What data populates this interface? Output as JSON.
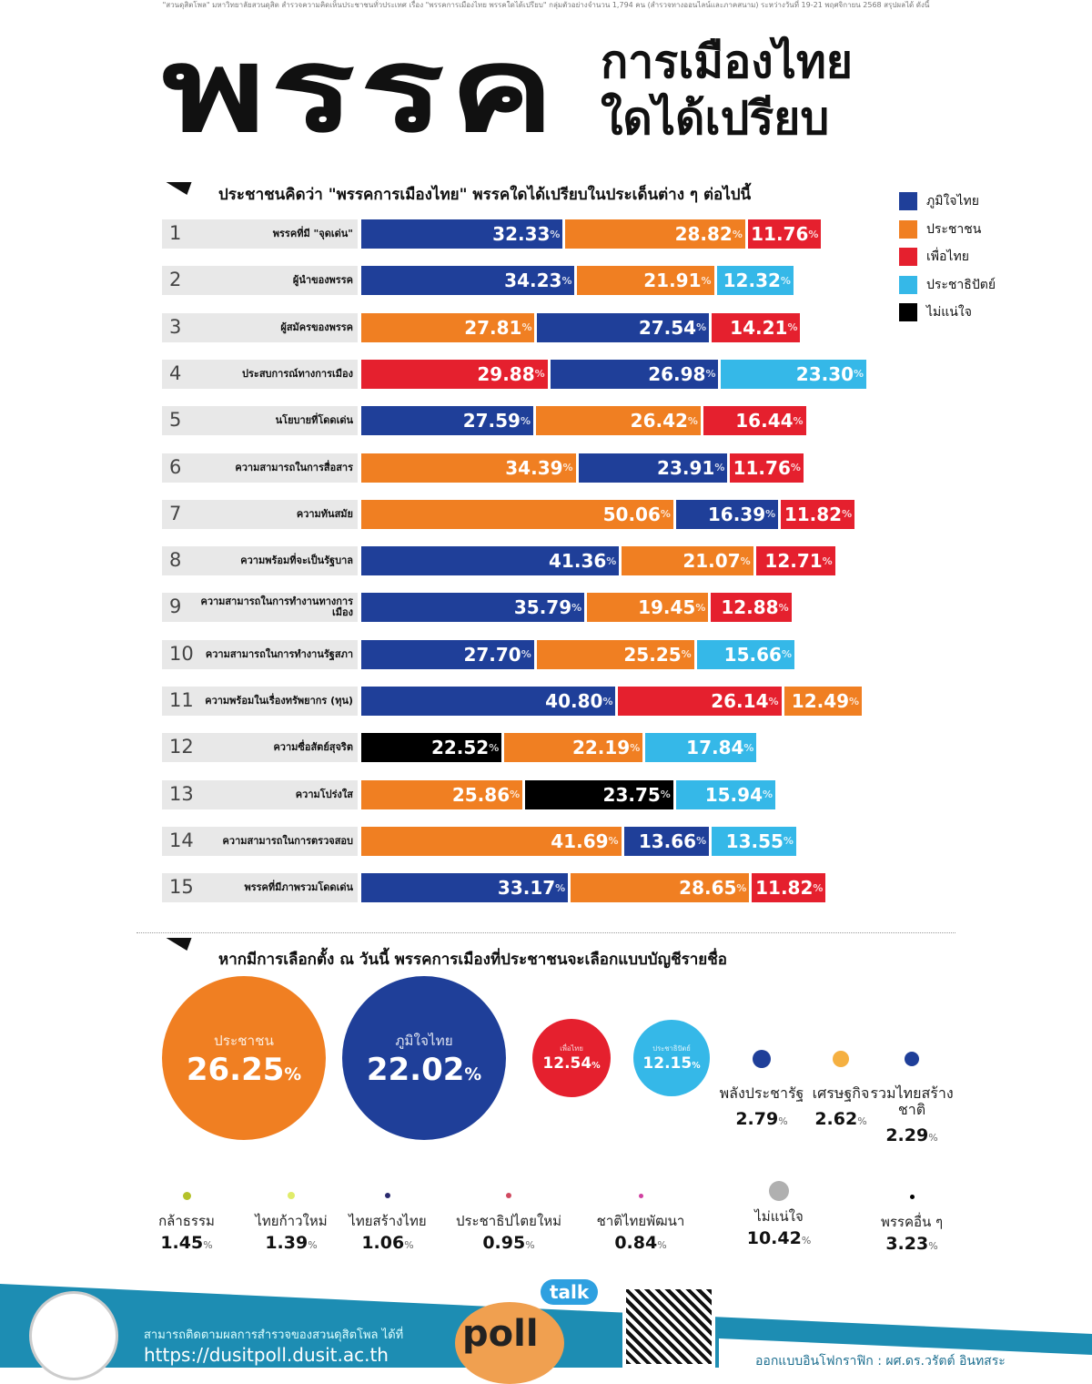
{
  "source_line": "\"สวนดุสิตโพล\" มหาวิทยาลัยสวนดุสิต สำรวจความคิดเห็นประชาชนทั่วประเทศ เรื่อง \"พรรคการเมืองไทย พรรคใดได้เปรียบ\" กลุ่มตัวอย่างจำนวน 1,794 คน (สำรวจทางออนไลน์และภาคสนาม) ระหว่างวันที่ 19-21 พฤศจิกายน 2568 สรุปผลได้ ดังนี้",
  "header": {
    "big": "พรรค",
    "line1": "การเมืองไทย",
    "line2": "ใดได้เปรียบ"
  },
  "colors": {
    "ภูมิใจไทย": "#1f3f99",
    "ประชาชน": "#f07f22",
    "เพื่อไทย": "#e5202e",
    "ประชาธิปัตย์": "#35b8e8",
    "ไม่แน่ใจ": "#000000"
  },
  "chart_data": [
    {
      "type": "bar",
      "orientation": "horizontal-stacked",
      "title": "ประชาชนคิดว่า \"พรรคการเมืองไทย\" พรรคใดได้เปรียบในประเด็นต่าง ๆ ต่อไปนี้",
      "legend_position": "right",
      "legend": [
        "ภูมิใจไทย",
        "ประชาชน",
        "เพื่อไทย",
        "ประชาธิปัตย์",
        "ไม่แน่ใจ"
      ],
      "rows": [
        {
          "n": "1",
          "label": "พรรคที่มี \"จุดเด่น\"",
          "segments": [
            {
              "party": "ภูมิใจไทย",
              "value": "32.33"
            },
            {
              "party": "ประชาชน",
              "value": "28.82"
            },
            {
              "party": "เพื่อไทย",
              "value": "11.76"
            }
          ]
        },
        {
          "n": "2",
          "label": "ผู้นำของพรรค",
          "segments": [
            {
              "party": "ภูมิใจไทย",
              "value": "34.23"
            },
            {
              "party": "ประชาชน",
              "value": "21.91"
            },
            {
              "party": "ประชาธิปัตย์",
              "value": "12.32"
            }
          ]
        },
        {
          "n": "3",
          "label": "ผู้สมัครของพรรค",
          "segments": [
            {
              "party": "ประชาชน",
              "value": "27.81"
            },
            {
              "party": "ภูมิใจไทย",
              "value": "27.54"
            },
            {
              "party": "เพื่อไทย",
              "value": "14.21"
            }
          ]
        },
        {
          "n": "4",
          "label": "ประสบการณ์ทางการเมือง",
          "segments": [
            {
              "party": "เพื่อไทย",
              "value": "29.88"
            },
            {
              "party": "ภูมิใจไทย",
              "value": "26.98"
            },
            {
              "party": "ประชาธิปัตย์",
              "value": "23.30"
            }
          ]
        },
        {
          "n": "5",
          "label": "นโยบายที่โดดเด่น",
          "segments": [
            {
              "party": "ภูมิใจไทย",
              "value": "27.59"
            },
            {
              "party": "ประชาชน",
              "value": "26.42"
            },
            {
              "party": "เพื่อไทย",
              "value": "16.44"
            }
          ]
        },
        {
          "n": "6",
          "label": "ความสามารถในการสื่อสาร",
          "segments": [
            {
              "party": "ประชาชน",
              "value": "34.39"
            },
            {
              "party": "ภูมิใจไทย",
              "value": "23.91"
            },
            {
              "party": "เพื่อไทย",
              "value": "11.76"
            }
          ]
        },
        {
          "n": "7",
          "label": "ความทันสมัย",
          "segments": [
            {
              "party": "ประชาชน",
              "value": "50.06"
            },
            {
              "party": "ภูมิใจไทย",
              "value": "16.39"
            },
            {
              "party": "เพื่อไทย",
              "value": "11.82"
            }
          ]
        },
        {
          "n": "8",
          "label": "ความพร้อมที่จะเป็นรัฐบาล",
          "segments": [
            {
              "party": "ภูมิใจไทย",
              "value": "41.36"
            },
            {
              "party": "ประชาชน",
              "value": "21.07"
            },
            {
              "party": "เพื่อไทย",
              "value": "12.71"
            }
          ]
        },
        {
          "n": "9",
          "label": "ความสามารถในการทำงานทางการเมือง",
          "segments": [
            {
              "party": "ภูมิใจไทย",
              "value": "35.79"
            },
            {
              "party": "ประชาชน",
              "value": "19.45"
            },
            {
              "party": "เพื่อไทย",
              "value": "12.88"
            }
          ]
        },
        {
          "n": "10",
          "label": "ความสามารถในการทำงานรัฐสภา",
          "segments": [
            {
              "party": "ภูมิใจไทย",
              "value": "27.70"
            },
            {
              "party": "ประชาชน",
              "value": "25.25"
            },
            {
              "party": "ประชาธิปัตย์",
              "value": "15.66"
            }
          ]
        },
        {
          "n": "11",
          "label": "ความพร้อมในเรื่องทรัพยากร (ทุน)",
          "segments": [
            {
              "party": "ภูมิใจไทย",
              "value": "40.80"
            },
            {
              "party": "เพื่อไทย",
              "value": "26.14"
            },
            {
              "party": "ประชาชน",
              "value": "12.49"
            }
          ]
        },
        {
          "n": "12",
          "label": "ความซื่อสัตย์สุจริต",
          "segments": [
            {
              "party": "ไม่แน่ใจ",
              "value": "22.52"
            },
            {
              "party": "ประชาชน",
              "value": "22.19"
            },
            {
              "party": "ประชาธิปัตย์",
              "value": "17.84"
            }
          ]
        },
        {
          "n": "13",
          "label": "ความโปร่งใส",
          "segments": [
            {
              "party": "ประชาชน",
              "value": "25.86"
            },
            {
              "party": "ไม่แน่ใจ",
              "value": "23.75"
            },
            {
              "party": "ประชาธิปัตย์",
              "value": "15.94"
            }
          ]
        },
        {
          "n": "14",
          "label": "ความสามารถในการตรวจสอบ",
          "segments": [
            {
              "party": "ประชาชน",
              "value": "41.69"
            },
            {
              "party": "ภูมิใจไทย",
              "value": "13.66"
            },
            {
              "party": "ประชาธิปัตย์",
              "value": "13.55"
            }
          ]
        },
        {
          "n": "15",
          "label": "พรรคที่มีภาพรวมโดดเด่น",
          "segments": [
            {
              "party": "ภูมิใจไทย",
              "value": "33.17"
            },
            {
              "party": "ประชาชน",
              "value": "28.65"
            },
            {
              "party": "เพื่อไทย",
              "value": "11.82"
            }
          ]
        }
      ],
      "unit": "%"
    },
    {
      "type": "bubble",
      "title": "หากมีการเลือกตั้ง ณ วันนี้ พรรคการเมืองที่ประชาชนจะเลือกแบบบัญชีรายชื่อ",
      "unit": "%",
      "items": [
        {
          "name": "ประชาชน",
          "value": "26.25",
          "color": "#f07f22"
        },
        {
          "name": "ภูมิใจไทย",
          "value": "22.02",
          "color": "#1f3f99"
        },
        {
          "name": "เพื่อไทย",
          "value": "12.54",
          "color": "#e5202e"
        },
        {
          "name": "ประชาธิปัตย์",
          "value": "12.15",
          "color": "#35b8e8"
        },
        {
          "name": "พลังประชารัฐ",
          "value": "2.79",
          "color": "#1f3f99"
        },
        {
          "name": "เศรษฐกิจ",
          "value": "2.62",
          "color": "#f5b041"
        },
        {
          "name": "รวมไทยสร้างชาติ",
          "value": "2.29",
          "color": "#1f3f99"
        },
        {
          "name": "กล้าธรรม",
          "value": "1.45",
          "color": "#b5c22a"
        },
        {
          "name": "ไทยก้าวใหม่",
          "value": "1.39",
          "color": "#e0ec6a"
        },
        {
          "name": "ไทยสร้างไทย",
          "value": "1.06",
          "color": "#2a2a6e"
        },
        {
          "name": "ประชาธิปไตยใหม่",
          "value": "0.95",
          "color": "#d04a60"
        },
        {
          "name": "ชาติไทยพัฒนา",
          "value": "0.84",
          "color": "#d040a0"
        },
        {
          "name": "ไม่แน่ใจ",
          "value": "10.42",
          "color": "#b0b0b0"
        },
        {
          "name": "พรรคอื่น ๆ",
          "value": "3.23",
          "color": "#000000"
        }
      ]
    }
  ],
  "footer": {
    "follow": "สามารถติดตามผลการสำรวจของสวนดุสิตโพล ได้ที่",
    "url": "https://dusitpoll.dusit.ac.th",
    "talk": "talk",
    "poll": "poll",
    "credit": "ออกแบบอินโฟกราฟิก : ผศ.ดร.วรัตต์ อินทสระ"
  }
}
